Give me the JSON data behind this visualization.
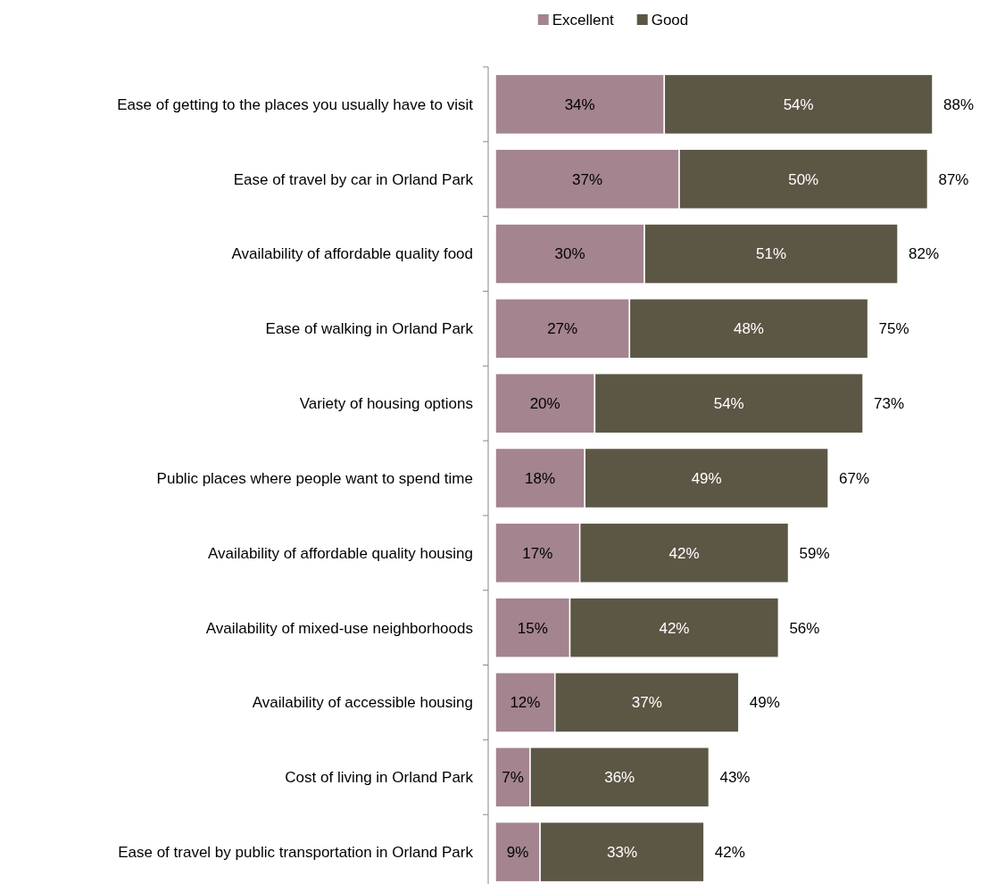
{
  "chart_data": {
    "type": "bar",
    "orientation": "horizontal",
    "stacked": true,
    "legend": "top",
    "xlim": [
      0,
      88
    ],
    "categories": [
      "Ease of getting to the places you usually have to visit",
      "Ease of travel by car in Orland Park",
      "Availability of affordable quality food",
      "Ease of walking in Orland Park",
      "Variety of housing options",
      "Public places where people want to spend time",
      "Availability of affordable quality housing",
      "Availability of mixed-use neighborhoods",
      "Availability of accessible housing",
      "Cost of living in Orland Park",
      "Ease of travel by public transportation in Orland Park"
    ],
    "series": [
      {
        "name": "Excellent",
        "color": "#a3848f",
        "values": [
          34,
          37,
          30,
          27,
          20,
          18,
          17,
          15,
          12,
          7,
          9
        ],
        "value_labels": [
          "34%",
          "37%",
          "30%",
          "27%",
          "20%",
          "18%",
          "17%",
          "15%",
          "12%",
          "7%",
          "9%"
        ]
      },
      {
        "name": "Good",
        "color": "#5c5645",
        "values": [
          54,
          50,
          51,
          48,
          54,
          49,
          42,
          42,
          37,
          36,
          33
        ],
        "value_labels": [
          "54%",
          "50%",
          "51%",
          "48%",
          "54%",
          "49%",
          "42%",
          "42%",
          "37%",
          "36%",
          "33%"
        ]
      }
    ],
    "totals": [
      "88%",
      "87%",
      "82%",
      "75%",
      "73%",
      "67%",
      "59%",
      "56%",
      "49%",
      "43%",
      "42%"
    ]
  }
}
